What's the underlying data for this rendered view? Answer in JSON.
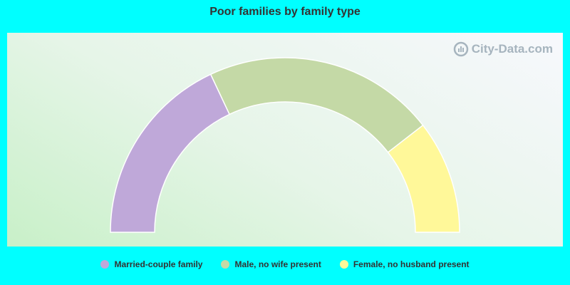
{
  "chart_data": {
    "type": "pie",
    "subtype": "semi-donut",
    "title": "Poor families by family type",
    "categories": [
      "Married-couple family",
      "Male, no wife present",
      "Female, no husband present"
    ],
    "values": [
      36,
      43,
      21
    ],
    "colors": [
      "#BFA8D9",
      "#C4D9A6",
      "#FFF899"
    ],
    "legend_position": "bottom"
  },
  "watermark": {
    "text": "City-Data.com"
  }
}
